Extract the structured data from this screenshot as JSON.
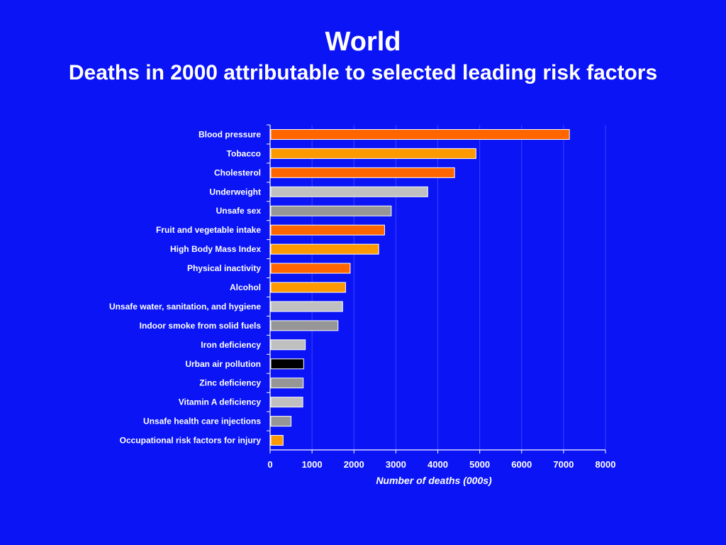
{
  "header": {
    "title": "World",
    "subtitle": "Deaths in 2000 attributable to selected leading risk factors"
  },
  "colors": {
    "background": "#0A14F5",
    "text": "#FFFFFF",
    "gridline": "#3A44FF",
    "bar_orange_red": "#FF6600",
    "bar_orange": "#FF9900",
    "bar_light_gray": "#C0C0C0",
    "bar_gray": "#969696",
    "bar_black": "#000000"
  },
  "chart_data": {
    "type": "bar",
    "orientation": "horizontal",
    "categories": [
      "Blood pressure",
      "Tobacco",
      "Cholesterol",
      "Underweight",
      "Unsafe sex",
      "Fruit and vegetable intake",
      "High Body Mass Index",
      "Physical inactivity",
      "Alcohol",
      "Unsafe water, sanitation, and hygiene",
      "Indoor smoke from solid fuels",
      "Iron deficiency",
      "Urban air pollution",
      "Zinc deficiency",
      "Vitamin A deficiency",
      "Unsafe health care injections",
      "Occupational risk factors for injury"
    ],
    "values": [
      7140,
      4910,
      4400,
      3760,
      2890,
      2730,
      2590,
      1910,
      1800,
      1730,
      1620,
      840,
      800,
      790,
      780,
      500,
      310
    ],
    "bar_colors": [
      "#FF6600",
      "#FF9900",
      "#FF6600",
      "#C0C0C0",
      "#969696",
      "#FF6600",
      "#FF9900",
      "#FF6600",
      "#FF9900",
      "#C0C0C0",
      "#969696",
      "#C0C0C0",
      "#000000",
      "#969696",
      "#C0C0C0",
      "#969696",
      "#FF9900"
    ],
    "xlabel": "Number of deaths (000s)",
    "ylabel": "",
    "xlim": [
      0,
      8000
    ],
    "xticks": [
      "0",
      "1000",
      "2000",
      "3000",
      "4000",
      "5000",
      "6000",
      "7000",
      "8000"
    ],
    "grid": true,
    "legend": "none"
  }
}
